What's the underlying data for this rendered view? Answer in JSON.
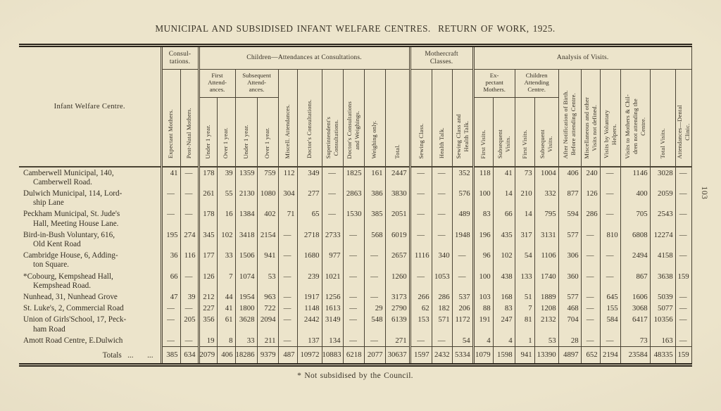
{
  "page": {
    "title": "MUNICIPAL AND SUBSIDISED INFANT WELFARE CENTRES.  RETURN OF WORK, 1925.",
    "footnote": "* Not subsidised by the Council.",
    "page_number": "103"
  },
  "colors": {
    "paper": "#ece4cb",
    "ink": "#342e23",
    "rule": "#4a4334"
  },
  "table": {
    "row_header": "Infant Welfare Centre.",
    "groups": {
      "consultations": "Consul-\ntations.",
      "children_attendances": "Children—Attendances at Consultations.",
      "mothercraft": "Mothercraft\nClasses.",
      "analysis": "Analysis of Visits."
    },
    "subgroups": {
      "first_attendances": "First\nAttend-\nances.",
      "subsequent_attendances": "Subsequent\nAttend-\nances.",
      "expectant_mothers": "Ex-\npectant\nMothers.",
      "children_attending": "Children\nAttending\nCentre."
    },
    "columns": [
      "Expectant Mothers.",
      "Post-Natal Mothers.",
      "Under 1 year.",
      "Over 1 year.",
      "Under 1 year.",
      "Over 1 year.",
      "Miscell. Attendances.",
      "Doctor's Consultations.",
      "Superintendent's\nConsultations.",
      "Doctor's Consultations\nand Weighings.",
      "Weighing only.",
      "Total.",
      "Sewing Class.",
      "Health Talk.",
      "Sewing Class and\nHealth Talk.",
      "First Visits.",
      "Subsequent\nVisits.",
      "First Visits.",
      "Subsequent\nVisits.",
      "After Notification of Birth.\nBefore attending Centre.",
      "Miscellaneous and other\nVisits not defined.",
      "Visits by Voluntary\nHelpers.",
      "Visits to Mothers & Chil-\ndren not attending the\nCentre.",
      "Total Visits.",
      "Attendances—Dental\nClinic."
    ],
    "rows": [
      {
        "name": "Camberwell Municipal, 140,\nCamberwell Road.",
        "values": [
          "41",
          "—",
          "178",
          "39",
          "1359",
          "759",
          "112",
          "349",
          "—",
          "1825",
          "161",
          "2447",
          "—",
          "—",
          "352",
          "118",
          "41",
          "73",
          "1004",
          "406",
          "240",
          "—",
          "1146",
          "3028",
          "—"
        ]
      },
      {
        "name": "Dulwich Municipal, 114, Lord-\nship Lane",
        "values": [
          "—",
          "—",
          "261",
          "55",
          "2130",
          "1080",
          "304",
          "277",
          "—",
          "2863",
          "386",
          "3830",
          "—",
          "—",
          "576",
          "100",
          "14",
          "210",
          "332",
          "877",
          "126",
          "—",
          "400",
          "2059",
          "—"
        ]
      },
      {
        "name": "Peckham Municipal, St. Jude's\nHall, Meeting House Lane.",
        "values": [
          "—",
          "—",
          "178",
          "16",
          "1384",
          "402",
          "71",
          "65",
          "—",
          "1530",
          "385",
          "2051",
          "—",
          "—",
          "489",
          "83",
          "66",
          "14",
          "795",
          "594",
          "286",
          "—",
          "705",
          "2543",
          "—"
        ]
      },
      {
        "name": "Bird-in-Bush Voluntary, 616,\nOld Kent Road",
        "values": [
          "195",
          "274",
          "345",
          "102",
          "3418",
          "2154",
          "—",
          "2718",
          "2733",
          "—",
          "568",
          "6019",
          "—",
          "—",
          "1948",
          "196",
          "435",
          "317",
          "3131",
          "577",
          "—",
          "810",
          "6808",
          "12274",
          "—"
        ]
      },
      {
        "name": "Cambridge House, 6, Adding-\nton Square.",
        "values": [
          "36",
          "116",
          "177",
          "33",
          "1506",
          "941",
          "—",
          "1680",
          "977",
          "—",
          "—",
          "2657",
          "1116",
          "340",
          "—",
          "96",
          "102",
          "54",
          "1106",
          "306",
          "—",
          "—",
          "2494",
          "4158",
          "—"
        ]
      },
      {
        "name": "*Cobourg, Kempshead Hall,\nKempshead Road.",
        "values": [
          "66",
          "—",
          "126",
          "7",
          "1074",
          "53",
          "—",
          "239",
          "1021",
          "—",
          "—",
          "1260",
          "—",
          "1053",
          "—",
          "100",
          "438",
          "133",
          "1740",
          "360",
          "—",
          "—",
          "867",
          "3638",
          "159"
        ]
      },
      {
        "name": "Nunhead, 31, Nunhead Grove",
        "values": [
          "47",
          "39",
          "212",
          "44",
          "1954",
          "963",
          "—",
          "1917",
          "1256",
          "—",
          "—",
          "3173",
          "266",
          "286",
          "537",
          "103",
          "168",
          "51",
          "1889",
          "577",
          "—",
          "645",
          "1606",
          "5039",
          "—"
        ]
      },
      {
        "name": "St. Luke's, 2, Commercial Road",
        "values": [
          "—",
          "—",
          "227",
          "41",
          "1800",
          "722",
          "—",
          "1148",
          "1613",
          "—",
          "29",
          "2790",
          "62",
          "182",
          "206",
          "88",
          "83",
          "7",
          "1208",
          "468",
          "—",
          "155",
          "3068",
          "5077",
          "—"
        ]
      },
      {
        "name": "Union of Girls'School, 17, Peck-\nham Road",
        "values": [
          "—",
          "205",
          "356",
          "61",
          "3628",
          "2094",
          "—",
          "2442",
          "3149",
          "—",
          "548",
          "6139",
          "153",
          "571",
          "1172",
          "191",
          "247",
          "81",
          "2132",
          "704",
          "—",
          "584",
          "6417",
          "10356",
          "—"
        ]
      },
      {
        "name": "Amott Road Centre, E.Dulwich",
        "values": [
          "—",
          "—",
          "19",
          "8",
          "33",
          "211",
          "—",
          "137",
          "134",
          "—",
          "—",
          "271",
          "—",
          "—",
          "54",
          "4",
          "4",
          "1",
          "53",
          "28",
          "—",
          "—",
          "73",
          "163",
          "—"
        ]
      }
    ],
    "totals": {
      "label": "Totals   ...       ...",
      "values": [
        "385",
        "634",
        "2079",
        "406",
        "18286",
        "9379",
        "487",
        "10972",
        "10883",
        "6218",
        "2077",
        "30637",
        "1597",
        "2432",
        "5334",
        "1079",
        "1598",
        "941",
        "13390",
        "4897",
        "652",
        "2194",
        "23584",
        "48335",
        "159"
      ]
    }
  }
}
